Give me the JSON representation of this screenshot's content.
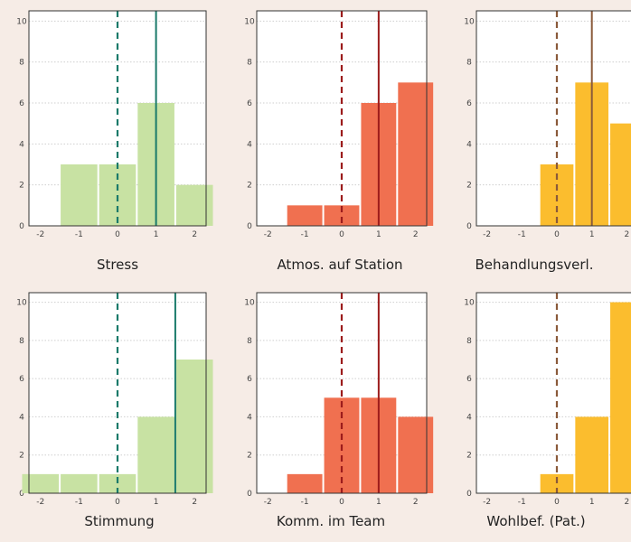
{
  "chart_data": [
    {
      "type": "bar",
      "title": "Stress",
      "color": "#c8e2a3",
      "bins": [
        [
          -2,
          -1.5,
          0
        ],
        [
          -1.5,
          -0.5,
          3
        ],
        [
          -0.5,
          0.5,
          3
        ],
        [
          0.5,
          1.5,
          6
        ],
        [
          1.5,
          2.5,
          2
        ]
      ],
      "dashed_line_x": 0,
      "solid_line_x": 1,
      "line_color": "#1a7a6a",
      "xlim": [
        -2.3,
        2.3
      ],
      "ylim": [
        0,
        10.5
      ],
      "xticks": [
        -2,
        -1,
        0,
        1,
        2
      ],
      "yticks": [
        0,
        2,
        4,
        6,
        8,
        10
      ]
    },
    {
      "type": "bar",
      "title": "Atmos. auf Station",
      "color": "#f07050",
      "bins": [
        [
          -2,
          -1.5,
          0
        ],
        [
          -1.5,
          -0.5,
          1
        ],
        [
          -0.5,
          0.5,
          1
        ],
        [
          0.5,
          1.5,
          6
        ],
        [
          1.5,
          2.5,
          7
        ]
      ],
      "dashed_line_x": 0,
      "solid_line_x": 1,
      "line_color": "#9c1c1c",
      "xlim": [
        -2.3,
        2.3
      ],
      "ylim": [
        0,
        10.5
      ],
      "xticks": [
        -2,
        -1,
        0,
        1,
        2
      ],
      "yticks": [
        0,
        2,
        4,
        6,
        8,
        10
      ]
    },
    {
      "type": "bar",
      "title": "Behandlungsverl.",
      "color": "#fbbd2e",
      "bins": [
        [
          -2,
          -1.5,
          0
        ],
        [
          -1.5,
          -0.5,
          0
        ],
        [
          -0.5,
          0.5,
          3
        ],
        [
          0.5,
          1.5,
          7
        ],
        [
          1.5,
          2.5,
          5
        ]
      ],
      "dashed_line_x": 0,
      "solid_line_x": 1,
      "line_color": "#8a5a3a",
      "xlim": [
        -2.3,
        2.3
      ],
      "ylim": [
        0,
        10.5
      ],
      "xticks": [
        -2,
        -1,
        0,
        1,
        2
      ],
      "yticks": [
        0,
        2,
        4,
        6,
        8,
        10
      ]
    },
    {
      "type": "bar",
      "title": "Stimmung",
      "color": "#c8e2a3",
      "bins": [
        [
          -2.5,
          -1.5,
          1
        ],
        [
          -1.5,
          -0.5,
          1
        ],
        [
          -0.5,
          0.5,
          1
        ],
        [
          0.5,
          1.5,
          4
        ],
        [
          1.5,
          2.5,
          7
        ]
      ],
      "dashed_line_x": 0,
      "solid_line_x": 1.5,
      "line_color": "#1a7a6a",
      "xlim": [
        -2.3,
        2.3
      ],
      "ylim": [
        0,
        10.5
      ],
      "xticks": [
        -2,
        -1,
        0,
        1,
        2
      ],
      "yticks": [
        0,
        2,
        4,
        6,
        8,
        10
      ]
    },
    {
      "type": "bar",
      "title": "Komm. im Team",
      "color": "#f07050",
      "bins": [
        [
          -2,
          -1.5,
          0
        ],
        [
          -1.5,
          -0.5,
          1
        ],
        [
          -0.5,
          0.5,
          5
        ],
        [
          0.5,
          1.5,
          5
        ],
        [
          1.5,
          2.5,
          4
        ]
      ],
      "dashed_line_x": 0,
      "solid_line_x": 1,
      "line_color": "#9c1c1c",
      "xlim": [
        -2.3,
        2.3
      ],
      "ylim": [
        0,
        10.5
      ],
      "xticks": [
        -2,
        -1,
        0,
        1,
        2
      ],
      "yticks": [
        0,
        2,
        4,
        6,
        8,
        10
      ]
    },
    {
      "type": "bar",
      "title": "Wohlbef. (Pat.)",
      "color": "#fbbd2e",
      "bins": [
        [
          -2,
          -1.5,
          0
        ],
        [
          -1.5,
          -0.5,
          0
        ],
        [
          -0.5,
          0.5,
          1
        ],
        [
          0.5,
          1.5,
          4
        ],
        [
          1.5,
          2.5,
          10
        ]
      ],
      "dashed_line_x": 0,
      "solid_line_x": null,
      "line_color": "#8a5a3a",
      "xlim": [
        -2.3,
        2.3
      ],
      "ylim": [
        0,
        10.5
      ],
      "xticks": [
        -2,
        -1,
        0,
        1,
        2
      ],
      "yticks": [
        0,
        2,
        4,
        6,
        8,
        10
      ]
    }
  ]
}
